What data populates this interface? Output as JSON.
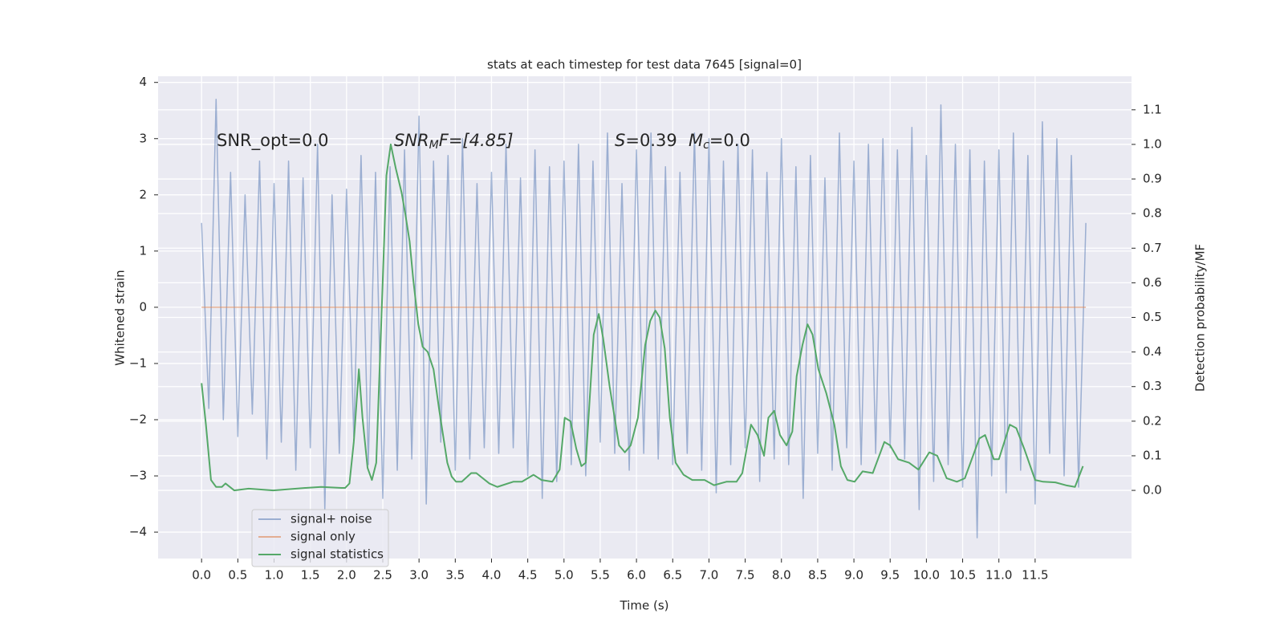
{
  "chart_data": {
    "type": "line",
    "title": "stats at each timestep for test data 7645 [signal=0]",
    "x_label": "Time (s)",
    "y_label": "Whitened strain",
    "y2_label": "Detection probability/MF",
    "xlim": [
      -0.6,
      12.83
    ],
    "ylim": [
      -4.47,
      4.11
    ],
    "y2lim": [
      -0.197,
      1.197
    ],
    "xticks": [
      {
        "value": 0,
        "label": "0.0"
      },
      {
        "value": 0.5,
        "label": "0.5"
      },
      {
        "value": 1,
        "label": "1.0"
      },
      {
        "value": 1.5,
        "label": "1.5"
      },
      {
        "value": 2,
        "label": "2.0"
      },
      {
        "value": 2.5,
        "label": "2.5"
      },
      {
        "value": 3,
        "label": "3.0"
      },
      {
        "value": 3.5,
        "label": "3.5"
      },
      {
        "value": 4,
        "label": "4.0"
      },
      {
        "value": 4.5,
        "label": "4.5"
      },
      {
        "value": 5,
        "label": "5.0"
      },
      {
        "value": 5.5,
        "label": "5.5"
      },
      {
        "value": 6,
        "label": "6.0"
      },
      {
        "value": 6.5,
        "label": "6.5"
      },
      {
        "value": 7,
        "label": "7.0"
      },
      {
        "value": 7.5,
        "label": "7.5"
      },
      {
        "value": 8,
        "label": "8.0"
      },
      {
        "value": 8.5,
        "label": "8.5"
      },
      {
        "value": 9,
        "label": "9.0"
      },
      {
        "value": 9.5,
        "label": "9.5"
      },
      {
        "value": 10,
        "label": "10.0"
      },
      {
        "value": 10.5,
        "label": "10.5"
      },
      {
        "value": 11,
        "label": "11.0"
      },
      {
        "value": 11.5,
        "label": "11.5"
      }
    ],
    "yticks": [
      {
        "value": -4,
        "label": "−4"
      },
      {
        "value": -3,
        "label": "−3"
      },
      {
        "value": -2,
        "label": "−2"
      },
      {
        "value": -1,
        "label": "−1"
      },
      0,
      1,
      2,
      3,
      4
    ],
    "y2ticks": [
      {
        "value": 0,
        "label": "0.0"
      },
      {
        "value": 0.1,
        "label": "0.1"
      },
      {
        "value": 0.2,
        "label": "0.2"
      },
      {
        "value": 0.3,
        "label": "0.3"
      },
      {
        "value": 0.4,
        "label": "0.4"
      },
      {
        "value": 0.5,
        "label": "0.5"
      },
      {
        "value": 0.6,
        "label": "0.6"
      },
      {
        "value": 0.7,
        "label": "0.7"
      },
      {
        "value": 0.8,
        "label": "0.8"
      },
      {
        "value": 0.9,
        "label": "0.9"
      },
      {
        "value": 1.0,
        "label": "1.0"
      },
      {
        "value": 1.1,
        "label": "1.1"
      }
    ],
    "grid": true,
    "legend": "lower left",
    "annotations": [
      "SNR_opt=0.0",
      [
        "SNR",
        "M",
        "F=[4.85]"
      ],
      [
        "S",
        "=0.39"
      ],
      [
        "M",
        "c",
        "=0.0"
      ]
    ],
    "series": [
      {
        "name": "signal+ noise",
        "color": "#4c72b0",
        "opacity": 0.5,
        "x": [
          0,
          0.1,
          0.2,
          0.3,
          0.4,
          0.5,
          0.6,
          0.7,
          0.8,
          0.9,
          1,
          1.1,
          1.2,
          1.3,
          1.4,
          1.5,
          1.6,
          1.7,
          1.8,
          1.9,
          2,
          2.1,
          2.2,
          2.3,
          2.4,
          2.5,
          2.6,
          2.7,
          2.8,
          2.9,
          3,
          3.1,
          3.2,
          3.3,
          3.4,
          3.5,
          3.6,
          3.7,
          3.8,
          3.9,
          4,
          4.1,
          4.2,
          4.3,
          4.4,
          4.5,
          4.6,
          4.7,
          4.8,
          4.9,
          5,
          5.1,
          5.2,
          5.3,
          5.4,
          5.5,
          5.6,
          5.7,
          5.8,
          5.9,
          6,
          6.1,
          6.2,
          6.3,
          6.4,
          6.5,
          6.6,
          6.7,
          6.8,
          6.9,
          7,
          7.1,
          7.2,
          7.3,
          7.4,
          7.5,
          7.6,
          7.7,
          7.8,
          7.9,
          8,
          8.1,
          8.2,
          8.3,
          8.4,
          8.5,
          8.6,
          8.7,
          8.8,
          8.9,
          9,
          9.1,
          9.2,
          9.3,
          9.4,
          9.5,
          9.6,
          9.7,
          9.8,
          9.9,
          10,
          10.1,
          10.2,
          10.3,
          10.4,
          10.5,
          10.6,
          10.7,
          10.8,
          10.9,
          11,
          11.1,
          11.2,
          11.3,
          11.4,
          11.5,
          11.6,
          11.7,
          11.8,
          11.9,
          12,
          12.1,
          12.2
        ],
        "values": [
          1.5,
          -1.8,
          3.7,
          -2.0,
          2.4,
          -2.3,
          2.0,
          -1.9,
          2.6,
          -2.7,
          2.2,
          -2.4,
          2.6,
          -2.9,
          2.3,
          -2.5,
          2.9,
          -3.6,
          2.0,
          -2.6,
          2.1,
          -2.3,
          2.7,
          -2.8,
          2.4,
          -3.4,
          2.5,
          -2.9,
          2.8,
          -2.7,
          3.4,
          -3.5,
          2.6,
          -2.4,
          2.7,
          -2.9,
          3.0,
          -2.7,
          2.2,
          -2.5,
          2.4,
          -2.6,
          2.9,
          -2.5,
          2.3,
          -3.0,
          2.8,
          -3.4,
          2.5,
          -3.1,
          2.6,
          -2.8,
          2.9,
          -3.0,
          2.6,
          -2.4,
          3.1,
          -2.6,
          2.2,
          -2.9,
          2.8,
          -2.6,
          3.1,
          -2.7,
          2.5,
          -2.8,
          2.4,
          -2.6,
          3.1,
          -2.9,
          3.0,
          -3.3,
          2.6,
          -2.8,
          2.9,
          -2.5,
          2.8,
          -3.1,
          2.4,
          -2.7,
          3.0,
          -2.8,
          2.5,
          -3.4,
          2.7,
          -2.6,
          2.3,
          -2.9,
          3.1,
          -2.5,
          2.6,
          -2.8,
          2.9,
          -2.6,
          3.0,
          -2.5,
          2.8,
          -2.7,
          3.2,
          -3.6,
          2.7,
          -3.1,
          3.6,
          -2.8,
          2.9,
          -3.2,
          2.8,
          -4.1,
          2.6,
          -3.0,
          2.8,
          -3.3,
          3.1,
          -2.9,
          2.7,
          -3.5,
          3.3,
          -2.6,
          3.0,
          -3.0,
          2.7,
          -3.2,
          1.5
        ]
      },
      {
        "name": "signal only",
        "color": "#dd8452",
        "opacity": 0.6,
        "x": [
          0,
          12.2
        ],
        "values": [
          0,
          0
        ]
      },
      {
        "name": "signal statistics",
        "color": "#55a868",
        "opacity": 1,
        "axis": "y2",
        "x": [
          0,
          0.06,
          0.13,
          0.2,
          0.28,
          0.33,
          0.45,
          0.65,
          0.99,
          1.43,
          1.65,
          1.93,
          1.98,
          2.04,
          2.1,
          2.17,
          2.22,
          2.29,
          2.35,
          2.41,
          2.48,
          2.55,
          2.61,
          2.68,
          2.76,
          2.81,
          2.87,
          2.92,
          2.99,
          3.05,
          3.12,
          3.2,
          3.28,
          3.39,
          3.45,
          3.51,
          3.59,
          3.72,
          3.79,
          3.97,
          4.08,
          4.3,
          4.42,
          4.58,
          4.69,
          4.84,
          4.94,
          5.01,
          5.09,
          5.17,
          5.24,
          5.3,
          5.41,
          5.48,
          5.54,
          5.63,
          5.76,
          5.84,
          5.92,
          6.02,
          6.12,
          6.19,
          6.26,
          6.32,
          6.39,
          6.46,
          6.54,
          6.65,
          6.77,
          6.94,
          7.07,
          7.24,
          7.38,
          7.46,
          7.58,
          7.67,
          7.76,
          7.82,
          7.9,
          7.98,
          8.07,
          8.15,
          8.21,
          8.29,
          8.36,
          8.43,
          8.51,
          8.62,
          8.73,
          8.82,
          8.91,
          9.01,
          9.12,
          9.26,
          9.42,
          9.5,
          9.61,
          9.76,
          9.89,
          10.04,
          10.15,
          10.28,
          10.42,
          10.53,
          10.73,
          10.81,
          10.93,
          11.0,
          11.15,
          11.24,
          11.35,
          11.5,
          11.61,
          11.78,
          11.94,
          12.05,
          12.16
        ],
        "values": [
          0.31,
          0.19,
          0.03,
          0.01,
          0.01,
          0.02,
          0.0,
          0.005,
          0.0,
          0.007,
          0.01,
          0.007,
          0.007,
          0.02,
          0.14,
          0.35,
          0.21,
          0.065,
          0.03,
          0.08,
          0.49,
          0.91,
          1.0,
          0.93,
          0.86,
          0.8,
          0.72,
          0.61,
          0.48,
          0.415,
          0.4,
          0.35,
          0.23,
          0.08,
          0.04,
          0.025,
          0.025,
          0.05,
          0.05,
          0.02,
          0.01,
          0.025,
          0.025,
          0.045,
          0.03,
          0.025,
          0.06,
          0.21,
          0.2,
          0.12,
          0.07,
          0.08,
          0.45,
          0.51,
          0.44,
          0.3,
          0.13,
          0.11,
          0.13,
          0.21,
          0.42,
          0.49,
          0.52,
          0.5,
          0.41,
          0.21,
          0.08,
          0.045,
          0.03,
          0.03,
          0.015,
          0.025,
          0.025,
          0.05,
          0.19,
          0.16,
          0.1,
          0.21,
          0.23,
          0.16,
          0.13,
          0.17,
          0.33,
          0.42,
          0.48,
          0.45,
          0.35,
          0.28,
          0.19,
          0.07,
          0.03,
          0.025,
          0.055,
          0.05,
          0.14,
          0.13,
          0.09,
          0.08,
          0.06,
          0.11,
          0.1,
          0.035,
          0.025,
          0.035,
          0.15,
          0.16,
          0.09,
          0.09,
          0.19,
          0.18,
          0.12,
          0.03,
          0.025,
          0.023,
          0.014,
          0.01,
          0.07
        ]
      }
    ]
  }
}
